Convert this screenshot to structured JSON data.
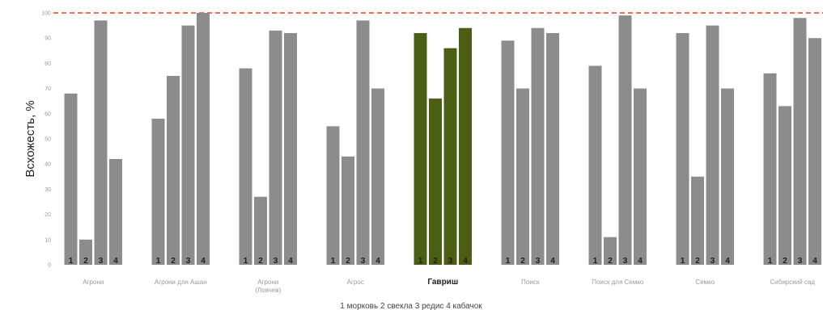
{
  "chart_data": {
    "type": "bar",
    "ylabel": "Всхожесть, %",
    "yticks": [
      "0",
      "10",
      "20",
      "30",
      "40",
      "50",
      "60",
      "70",
      "80",
      "90",
      "100"
    ],
    "ylim": [
      0,
      100
    ],
    "reference_line": {
      "value": 100,
      "style": "dashed",
      "color": "#e8401c"
    },
    "bar_numbers": [
      "1",
      "2",
      "3",
      "4"
    ],
    "legend_text": "1 морковь 2 свекла 3 редис 4 кабачок",
    "groups": [
      {
        "label": [
          "Агрони"
        ],
        "values": [
          68,
          10,
          97,
          42
        ],
        "highlight": false
      },
      {
        "label": [
          "Агрони для Ашан"
        ],
        "values": [
          58,
          75,
          95,
          100
        ],
        "highlight": false
      },
      {
        "label": [
          "Агрони",
          "(Ловчев)"
        ],
        "values": [
          78,
          27,
          93,
          92
        ],
        "highlight": false
      },
      {
        "label": [
          "Агрос"
        ],
        "values": [
          55,
          43,
          97,
          70
        ],
        "highlight": false
      },
      {
        "label": [
          "Гавриш"
        ],
        "values": [
          92,
          66,
          86,
          94
        ],
        "highlight": true
      },
      {
        "label": [
          "Поиск"
        ],
        "values": [
          89,
          70,
          94,
          92
        ],
        "highlight": false
      },
      {
        "label": [
          "Поиск для Семко"
        ],
        "values": [
          79,
          11,
          99,
          70
        ],
        "highlight": false
      },
      {
        "label": [
          "Семко"
        ],
        "values": [
          92,
          35,
          95,
          70
        ],
        "highlight": false
      },
      {
        "label": [
          "Сибирский сад"
        ],
        "values": [
          76,
          63,
          98,
          90
        ],
        "highlight": false
      }
    ],
    "colors": {
      "bar": "#8c8c8c",
      "highlight": "#4b5e14",
      "axis_text": "#9a9a9a"
    },
    "grid": false
  }
}
